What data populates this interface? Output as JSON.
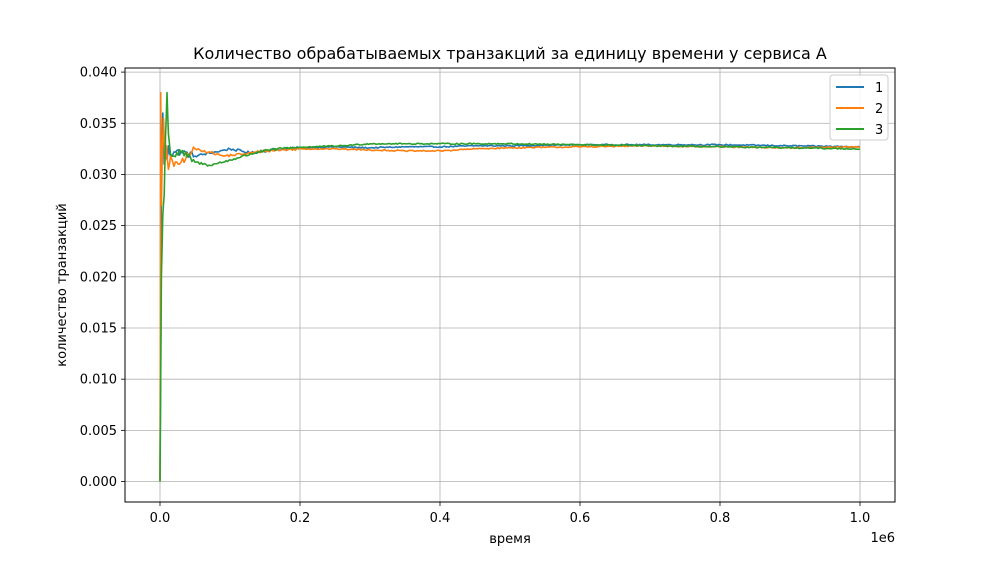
{
  "chart_data": {
    "type": "line",
    "title": "Количество обрабатываемых транзакций за единицу времени у сервиса A",
    "xlabel": "время",
    "ylabel": "количество транзакций",
    "x_offset_label": "1e6",
    "xlim": [
      -0.05,
      1.05
    ],
    "ylim": [
      -0.002,
      0.0404
    ],
    "x_ticks": [
      0.0,
      0.2,
      0.4,
      0.6,
      0.8,
      1.0
    ],
    "x_tick_labels": [
      "0.0",
      "0.2",
      "0.4",
      "0.6",
      "0.8",
      "1.0"
    ],
    "y_ticks": [
      0.0,
      0.005,
      0.01,
      0.015,
      0.02,
      0.025,
      0.03,
      0.035,
      0.04
    ],
    "y_tick_labels": [
      "0.000",
      "0.005",
      "0.010",
      "0.015",
      "0.020",
      "0.025",
      "0.030",
      "0.035",
      "0.040"
    ],
    "grid": true,
    "legend_position": "top-right",
    "series": [
      {
        "name": "1",
        "color": "#1f77b4",
        "points": [
          [
            0.0,
            0.0
          ],
          [
            0.001,
            0.012
          ],
          [
            0.002,
            0.031
          ],
          [
            0.004,
            0.036
          ],
          [
            0.006,
            0.031
          ],
          [
            0.008,
            0.0325
          ],
          [
            0.01,
            0.0315
          ],
          [
            0.012,
            0.0328
          ],
          [
            0.015,
            0.0318
          ],
          [
            0.02,
            0.0322
          ],
          [
            0.03,
            0.0322
          ],
          [
            0.05,
            0.0318
          ],
          [
            0.08,
            0.0322
          ],
          [
            0.1,
            0.0325
          ],
          [
            0.13,
            0.0321
          ],
          [
            0.16,
            0.0324
          ],
          [
            0.2,
            0.0326
          ],
          [
            0.25,
            0.0327
          ],
          [
            0.3,
            0.0326
          ],
          [
            0.35,
            0.0327
          ],
          [
            0.4,
            0.0327
          ],
          [
            0.45,
            0.0328
          ],
          [
            0.5,
            0.0328
          ],
          [
            0.6,
            0.0329
          ],
          [
            0.7,
            0.0329
          ],
          [
            0.8,
            0.0329
          ],
          [
            0.9,
            0.0328
          ],
          [
            1.0,
            0.0327
          ]
        ]
      },
      {
        "name": "2",
        "color": "#ff7f0e",
        "points": [
          [
            0.0,
            0.0
          ],
          [
            0.0005,
            0.015
          ],
          [
            0.001,
            0.038
          ],
          [
            0.002,
            0.027
          ],
          [
            0.003,
            0.031
          ],
          [
            0.005,
            0.0355
          ],
          [
            0.007,
            0.0312
          ],
          [
            0.009,
            0.0328
          ],
          [
            0.012,
            0.0305
          ],
          [
            0.015,
            0.0318
          ],
          [
            0.02,
            0.0308
          ],
          [
            0.03,
            0.0312
          ],
          [
            0.05,
            0.0325
          ],
          [
            0.07,
            0.0322
          ],
          [
            0.09,
            0.0318
          ],
          [
            0.12,
            0.032
          ],
          [
            0.15,
            0.0323
          ],
          [
            0.2,
            0.0325
          ],
          [
            0.25,
            0.0325
          ],
          [
            0.3,
            0.0324
          ],
          [
            0.35,
            0.0323
          ],
          [
            0.4,
            0.0323
          ],
          [
            0.45,
            0.0325
          ],
          [
            0.5,
            0.0326
          ],
          [
            0.6,
            0.0327
          ],
          [
            0.7,
            0.0328
          ],
          [
            0.8,
            0.0327
          ],
          [
            0.9,
            0.0326
          ],
          [
            1.0,
            0.0327
          ]
        ]
      },
      {
        "name": "3",
        "color": "#2ca02c",
        "points": [
          [
            0.0,
            0.0
          ],
          [
            0.002,
            0.02
          ],
          [
            0.004,
            0.026
          ],
          [
            0.006,
            0.028
          ],
          [
            0.008,
            0.034
          ],
          [
            0.01,
            0.038
          ],
          [
            0.012,
            0.034
          ],
          [
            0.015,
            0.032
          ],
          [
            0.02,
            0.0318
          ],
          [
            0.03,
            0.0322
          ],
          [
            0.05,
            0.0312
          ],
          [
            0.07,
            0.0309
          ],
          [
            0.09,
            0.0312
          ],
          [
            0.11,
            0.0316
          ],
          [
            0.14,
            0.0322
          ],
          [
            0.18,
            0.0326
          ],
          [
            0.22,
            0.0327
          ],
          [
            0.26,
            0.0328
          ],
          [
            0.3,
            0.033
          ],
          [
            0.35,
            0.033
          ],
          [
            0.4,
            0.033
          ],
          [
            0.45,
            0.033
          ],
          [
            0.5,
            0.033
          ],
          [
            0.6,
            0.0329
          ],
          [
            0.7,
            0.0328
          ],
          [
            0.8,
            0.0327
          ],
          [
            0.9,
            0.0326
          ],
          [
            1.0,
            0.0325
          ]
        ]
      }
    ]
  }
}
